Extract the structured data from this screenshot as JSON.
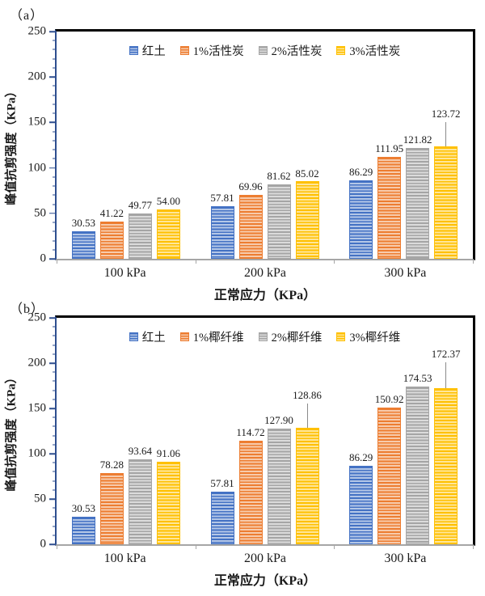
{
  "chart_data": [
    {
      "type": "bar",
      "panel": "（a）",
      "y_title": "峰值抗剪强度（KPa）",
      "x_title": "正常应力（KPa）",
      "categories": [
        "100 kPa",
        "200 kPa",
        "300 kPa"
      ],
      "y_ticks": [
        0,
        50,
        100,
        150,
        200,
        250
      ],
      "y_max": 250,
      "y_minor_step": 10,
      "legend_position": "top-center-inside",
      "grid": false,
      "series": [
        {
          "name": "红土",
          "color": "#4472C4",
          "tint": "#B4C7E7",
          "values": [
            30.53,
            57.81,
            86.29
          ]
        },
        {
          "name": "1%活性炭",
          "color": "#ED7D31",
          "tint": "#F7CBAC",
          "values": [
            41.22,
            69.96,
            111.95
          ]
        },
        {
          "name": "2%活性炭",
          "color": "#A5A5A5",
          "tint": "#DBDBDB",
          "values": [
            49.77,
            81.62,
            121.82
          ]
        },
        {
          "name": "3%活性炭",
          "color": "#FFC000",
          "tint": "#FFE699",
          "values": [
            54.0,
            85.02,
            123.72
          ]
        }
      ],
      "leader_labels": [
        {
          "category_index": 2,
          "series_index": 3,
          "rise": 30
        }
      ]
    },
    {
      "type": "bar",
      "panel": "（b）",
      "y_title": "峰值抗剪强度（KPa）",
      "x_title": "正常应力（KPa）",
      "categories": [
        "100 kPa",
        "200 kPa",
        "300 kPa"
      ],
      "y_ticks": [
        0,
        50,
        100,
        150,
        200,
        250
      ],
      "y_max": 250,
      "y_minor_step": 10,
      "legend_position": "top-center-inside",
      "grid": false,
      "series": [
        {
          "name": "红土",
          "color": "#4472C4",
          "tint": "#B4C7E7",
          "values": [
            30.53,
            57.81,
            86.29
          ]
        },
        {
          "name": "1%椰纤维",
          "color": "#ED7D31",
          "tint": "#F7CBAC",
          "values": [
            78.28,
            114.72,
            150.92
          ]
        },
        {
          "name": "2%椰纤维",
          "color": "#A5A5A5",
          "tint": "#DBDBDB",
          "values": [
            93.64,
            127.9,
            174.53
          ]
        },
        {
          "name": "3%椰纤维",
          "color": "#FFC000",
          "tint": "#FFE699",
          "values": [
            91.06,
            128.86,
            172.37
          ]
        }
      ],
      "leader_labels": [
        {
          "category_index": 1,
          "series_index": 3,
          "rise": 30
        },
        {
          "category_index": 2,
          "series_index": 3,
          "rise": 32
        }
      ]
    }
  ]
}
